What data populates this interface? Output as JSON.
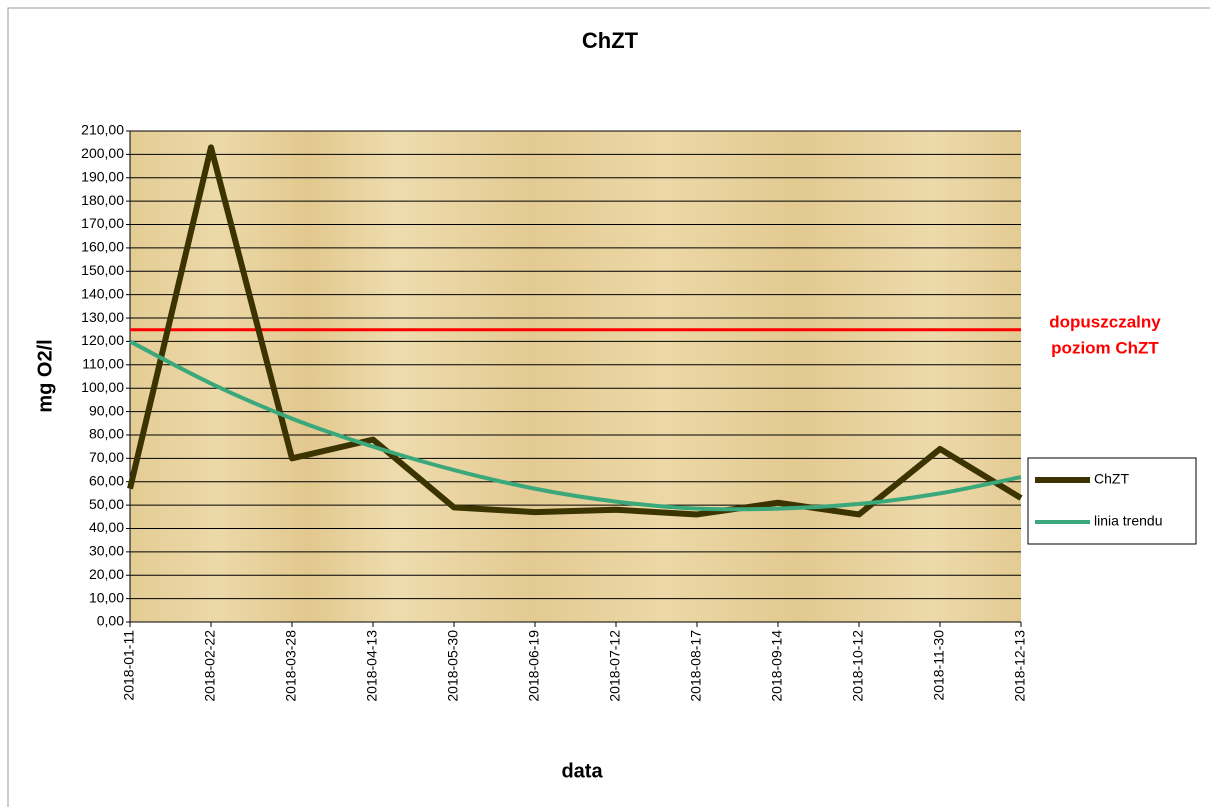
{
  "chart_data": {
    "type": "line",
    "title": "ChZT",
    "x_label": "data",
    "y_label": "mg O2/l",
    "categories": [
      "2018-01-11",
      "2018-02-22",
      "2018-03-28",
      "2018-04-13",
      "2018-05-30",
      "2018-06-19",
      "2018-07-12",
      "2018-08-17",
      "2018-09-14",
      "2018-10-12",
      "2018-11-30",
      "2018-12-13"
    ],
    "series": [
      {
        "name": "ChZT",
        "color": "#3b3300",
        "values": [
          57,
          203,
          70,
          78,
          49,
          47,
          48,
          46,
          51,
          46,
          74,
          53
        ]
      },
      {
        "name": "linia trendu",
        "color": "#3aa87a",
        "smooth": true,
        "values": [
          120,
          102,
          87,
          75,
          65,
          57,
          51.5,
          48.5,
          48.5,
          50.5,
          55,
          62
        ]
      }
    ],
    "threshold": {
      "value": 125,
      "color": "#ff0000",
      "label": [
        "dopuszczalny",
        "poziom ChZT"
      ]
    },
    "ylim": [
      0,
      210
    ],
    "yticks": [
      {
        "value": 0,
        "label": "0,00"
      },
      {
        "value": 10,
        "label": "10,00"
      },
      {
        "value": 20,
        "label": "20,00"
      },
      {
        "value": 30,
        "label": "30,00"
      },
      {
        "value": 40,
        "label": "40,00"
      },
      {
        "value": 50,
        "label": "50,00"
      },
      {
        "value": 60,
        "label": "60,00"
      },
      {
        "value": 70,
        "label": "70,00"
      },
      {
        "value": 80,
        "label": "80,00"
      },
      {
        "value": 90,
        "label": "90,00"
      },
      {
        "value": 100,
        "label": "100,00"
      },
      {
        "value": 110,
        "label": "110,00"
      },
      {
        "value": 120,
        "label": "120,00"
      },
      {
        "value": 130,
        "label": "130,00"
      },
      {
        "value": 140,
        "label": "140,00"
      },
      {
        "value": 150,
        "label": "150,00"
      },
      {
        "value": 160,
        "label": "160,00"
      },
      {
        "value": 170,
        "label": "170,00"
      },
      {
        "value": 180,
        "label": "180,00"
      },
      {
        "value": 190,
        "label": "190,00"
      },
      {
        "value": 200,
        "label": "200,00"
      },
      {
        "value": 210,
        "label": "210,00"
      }
    ],
    "grid": true,
    "legend": "right"
  }
}
